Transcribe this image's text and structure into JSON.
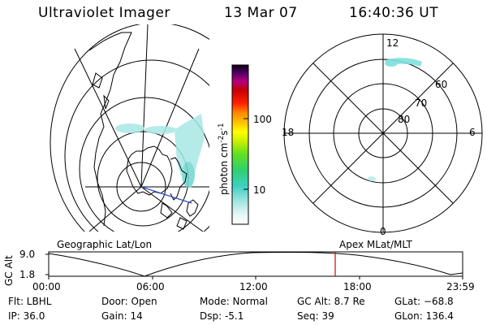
{
  "header": {
    "title": "Ultraviolet Imager",
    "date": "13 Mar 07",
    "time": "16:40:36 UT"
  },
  "geo_panel": {
    "label": "Geographic Lat/Lon"
  },
  "apex_panel": {
    "label": "Apex MLat/MLT",
    "mlt_labels": {
      "top": "12",
      "left": "18",
      "right": "6",
      "bottom": "0"
    },
    "lat_labels": [
      "60",
      "70",
      "80"
    ]
  },
  "colorbar": {
    "unit": "photon cm",
    "unit_exp1": "-2",
    "unit_mid": "s",
    "unit_exp2": "-1",
    "tick_100": "100",
    "tick_10": "10"
  },
  "altitude_plot": {
    "ylabel": "GC Alt",
    "ytick_top": "9.0",
    "ytick_bottom": "1.8",
    "xticks": [
      "00:00",
      "06:00",
      "12:00",
      "18:00",
      "23:59"
    ],
    "current_time_marker": "16:40"
  },
  "info": {
    "filter": "Flt: LBHL",
    "ip": "IP: 36.0",
    "door": "Door: Open",
    "gain": "Gain: 14",
    "mode": "Mode: Normal",
    "dsp": "Dsp:    -5.1",
    "gc_alt": "GC Alt: 8.7 Re",
    "seq": "Seq: 39",
    "glat": "GLat: −68.8",
    "glon": "GLon: 136.4"
  },
  "colors": {
    "background": "#ffffff",
    "foreground": "#000000",
    "aurora": "#7fe0dc",
    "marker": "#dd0000",
    "track": "#3050c0"
  }
}
